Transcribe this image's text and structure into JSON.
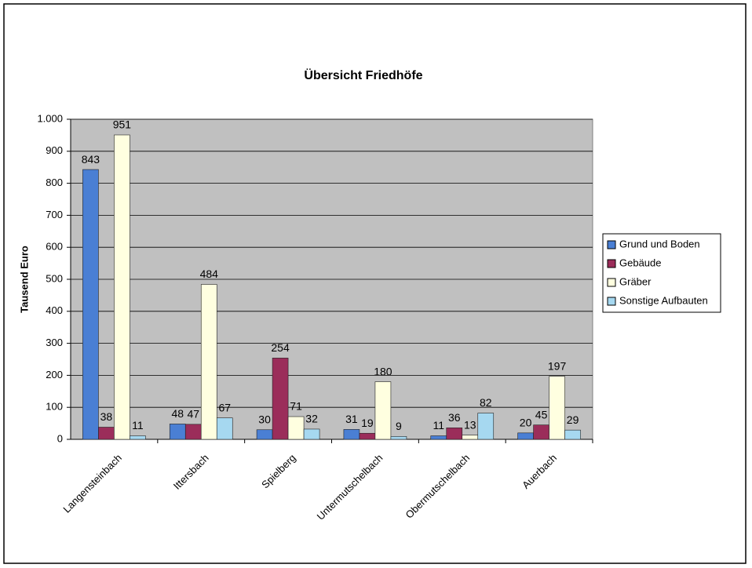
{
  "chart_data": {
    "type": "bar",
    "title": "Übersicht Friedhöfe",
    "y_label": "Tausend Euro",
    "categories": [
      "Langensteinbach",
      "Ittersbach",
      "Spielberg",
      "Untermutschelbach",
      "Obermutschelbach",
      "Auerbach"
    ],
    "series": [
      {
        "name": "Grund und Boden",
        "color": "#4a7fd4",
        "values": [
          843,
          48,
          30,
          31,
          11,
          20
        ]
      },
      {
        "name": "Gebäude",
        "color": "#9b2d5a",
        "values": [
          38,
          47,
          254,
          19,
          36,
          45
        ]
      },
      {
        "name": "Gräber",
        "color": "#ffffe0",
        "values": [
          951,
          484,
          71,
          180,
          13,
          197
        ]
      },
      {
        "name": "Sonstige Aufbauten",
        "color": "#a6d8f0",
        "values": [
          11,
          67,
          32,
          9,
          82,
          29
        ]
      }
    ],
    "ylim": [
      0,
      1000
    ],
    "yticks": [
      0,
      100,
      200,
      300,
      400,
      500,
      600,
      700,
      800,
      900,
      {
        "value": 1000,
        "label": "1.000"
      }
    ],
    "grid": true,
    "legend": "right"
  }
}
